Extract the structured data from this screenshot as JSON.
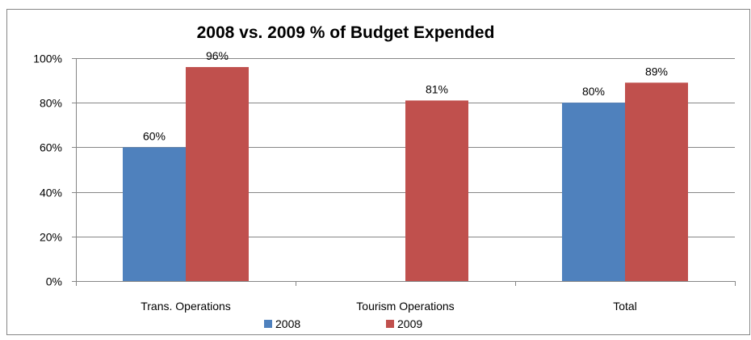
{
  "chart_data": {
    "type": "bar",
    "title": "2008 vs. 2009 % of Budget Expended",
    "xlabel": "",
    "ylabel": "",
    "categories": [
      "Trans. Operations",
      "Tourism Operations",
      "Total"
    ],
    "series": [
      {
        "name": "2008",
        "values": [
          60,
          null,
          80
        ],
        "labels": [
          "60%",
          "",
          "80%"
        ],
        "color": "#4f81bd"
      },
      {
        "name": "2009",
        "values": [
          96,
          81,
          89
        ],
        "labels": [
          "96%",
          "81%",
          "89%"
        ],
        "color": "#c0504d"
      }
    ],
    "ylim": [
      0,
      100
    ],
    "yticks": [
      0,
      20,
      40,
      60,
      80,
      100
    ],
    "ytick_labels": [
      "0%",
      "20%",
      "40%",
      "60%",
      "80%",
      "100%"
    ],
    "grid": true,
    "legend": "bottom"
  }
}
